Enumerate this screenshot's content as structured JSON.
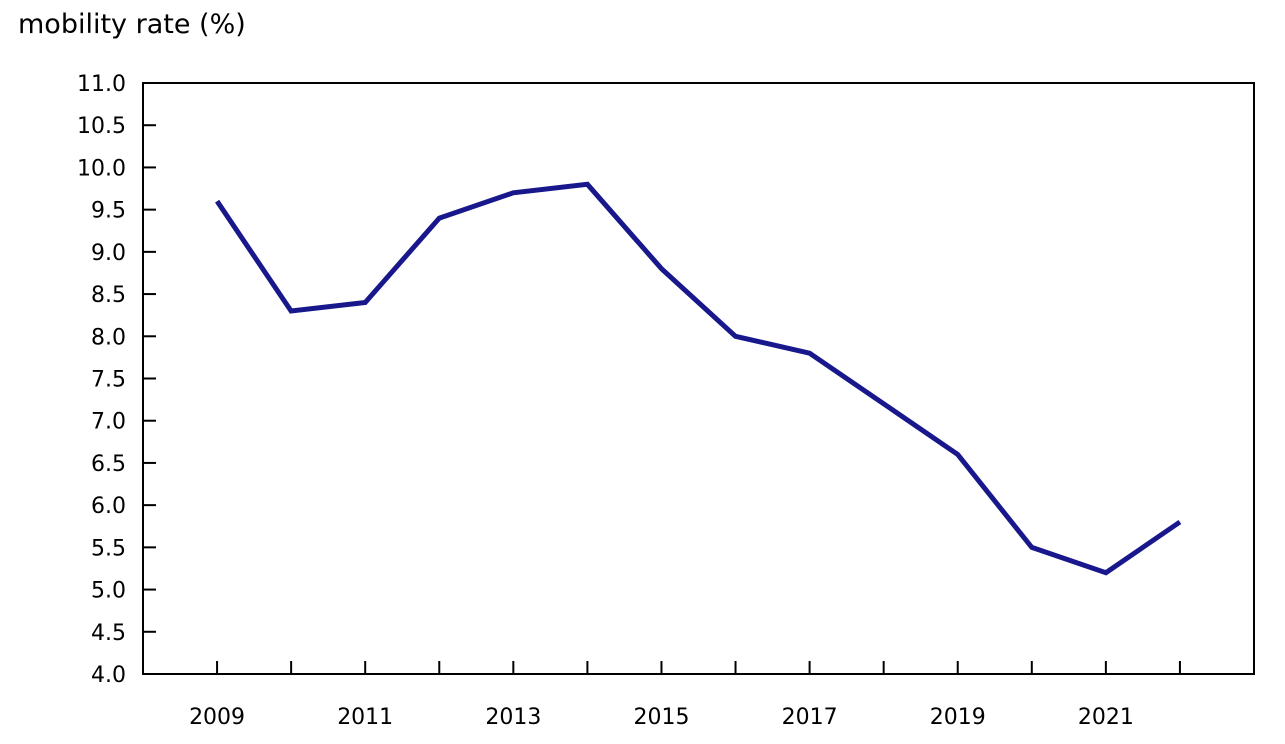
{
  "page": {
    "background": "#ffffff"
  },
  "colors": {
    "line": "#18188c",
    "axis": "#000000",
    "text": "#000000",
    "background": "#ffffff"
  },
  "chart_data": {
    "type": "line",
    "title": "mobility rate (%)",
    "xlabel": "",
    "ylabel": "mobility rate (%)",
    "x": [
      2009,
      2010,
      2011,
      2012,
      2013,
      2014,
      2015,
      2016,
      2017,
      2018,
      2019,
      2020,
      2021,
      2022
    ],
    "series": [
      {
        "name": "mobility rate (%)",
        "values": [
          9.6,
          8.3,
          8.4,
          9.4,
          9.7,
          9.8,
          8.8,
          8.0,
          7.8,
          7.2,
          6.6,
          5.5,
          5.2,
          5.8
        ]
      }
    ],
    "ylim": [
      4.0,
      11.0
    ],
    "ytick_step": 0.5,
    "ytick_labels": [
      "11.0",
      "10.5",
      "10.0",
      "9.5",
      "9.0",
      "8.5",
      "8.0",
      "7.5",
      "7.0",
      "6.5",
      "6.0",
      "5.5",
      "5.0",
      "4.5",
      "4.0"
    ],
    "xlim": [
      2008,
      2023
    ],
    "xtick_years": [
      2009,
      2010,
      2011,
      2012,
      2013,
      2014,
      2015,
      2016,
      2017,
      2018,
      2019,
      2020,
      2021,
      2022
    ],
    "xtick_labels": [
      "2009",
      "2011",
      "2013",
      "2015",
      "2017",
      "2019",
      "2021"
    ],
    "xtick_labeled_years": [
      2009,
      2011,
      2013,
      2015,
      2017,
      2019,
      2021
    ],
    "grid": false,
    "legend_position": "none"
  }
}
